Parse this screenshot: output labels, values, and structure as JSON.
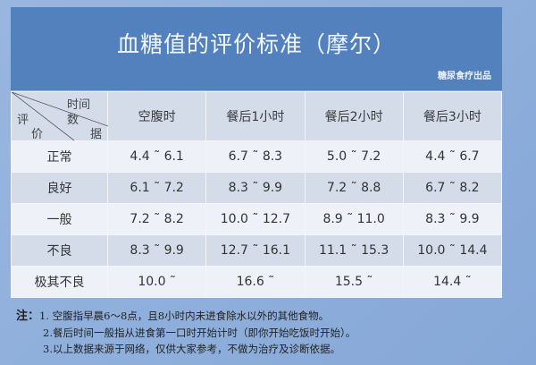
{
  "title": "血糖值的评价标准（摩尔）",
  "brand": "糖尿食疗出品",
  "corner": {
    "time": "时间",
    "data1": "数",
    "data2": "据",
    "eval1": "评",
    "eval2": "价"
  },
  "columns": [
    "空腹时",
    "餐后1小时",
    "餐后2小时",
    "餐后3小时"
  ],
  "rows": [
    {
      "label": "正常",
      "values": [
        "4.4 ˜ 6.1",
        "6.7 ˜ 8.3",
        "5.0 ˜ 7.2",
        "4.4 ˜ 6.7"
      ]
    },
    {
      "label": "良好",
      "values": [
        "6.1 ˜ 7.2",
        "8.3 ˜ 9.9",
        "7.2 ˜ 8.8",
        "6.7 ˜ 8.2"
      ]
    },
    {
      "label": "一般",
      "values": [
        "7.2 ˜ 8.2",
        "10.0 ˜ 12.7",
        "8.9 ˜ 11.0",
        "8.3 ˜ 9.9"
      ]
    },
    {
      "label": "不良",
      "values": [
        "8.3 ˜ 9.9",
        "12.7 ˜ 16.1",
        "11.1 ˜ 15.3",
        "10.0 ˜ 14.4"
      ]
    },
    {
      "label": "极其不良",
      "values": [
        "10.0 ˜",
        "16.6 ˜",
        "15.5 ˜",
        "14.4 ˜"
      ]
    }
  ],
  "notes": {
    "label": "注：",
    "items": [
      "1. 空腹指早晨6～8点，且8小时内未进食除水以外的其他食物。",
      "2.餐后时间一般指从进食第一口时开始计时（即你开始吃饭时开始）。",
      "3.以上数据来源于网络，仅供大家参考，不做为治疗及诊断依据。"
    ]
  }
}
